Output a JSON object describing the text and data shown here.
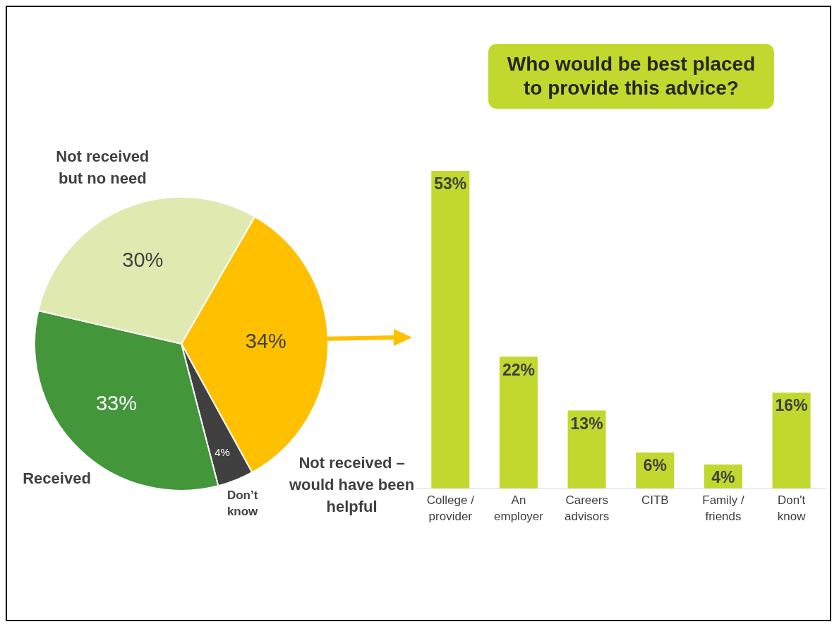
{
  "chart_data": [
    {
      "type": "pie",
      "categories": [
        "Not received – would have been helpful",
        "Don’t know",
        "Received",
        "Not received but no need"
      ],
      "values": [
        34,
        4,
        33,
        30
      ],
      "colors": [
        "#ffc000",
        "#404040",
        "#43963a",
        "#dfe9b0"
      ],
      "value_labels": [
        "34%",
        "4%",
        "33%",
        "30%"
      ]
    },
    {
      "type": "bar",
      "title": "Who would be best placed to provide this advice?",
      "categories": [
        "College / provider",
        "An employer",
        "Careers advisors",
        "CITB",
        "Family / friends",
        "Don't know"
      ],
      "values": [
        53,
        22,
        13,
        6,
        4,
        16
      ],
      "color": "#c2d82e",
      "value_labels": [
        "53%",
        "22%",
        "13%",
        "6%",
        "4%",
        "16%"
      ]
    }
  ]
}
